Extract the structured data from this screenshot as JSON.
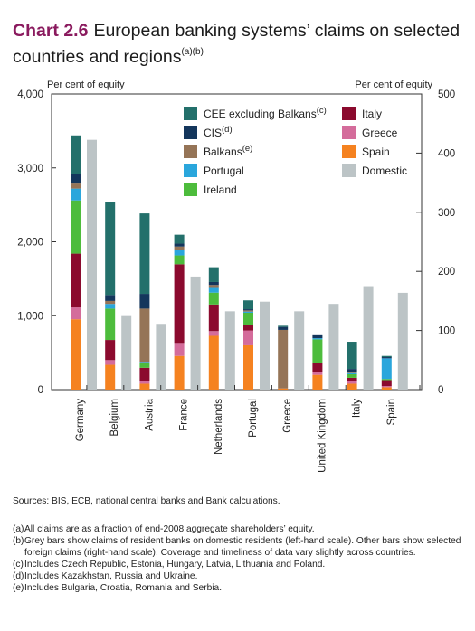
{
  "title": {
    "number": "Chart 2.6",
    "text_line1": "European banking systems’ claims on selected",
    "text_line2": "countries and regions",
    "superscript": "(a)(b)"
  },
  "colors": {
    "cee": "#23706b",
    "cis": "#14365c",
    "balkans": "#957457",
    "portugal": "#2aa6dc",
    "ireland": "#4dbc3c",
    "italy": "#8b0a2e",
    "greece": "#d46c9b",
    "spain": "#f58220",
    "domestic": "#bcc4c6",
    "axis": "#333333",
    "title_accent": "#8a1a5e"
  },
  "chart_data": {
    "type": "bar",
    "stacked": true,
    "left_axis": {
      "label": "Per cent of equity",
      "ylim": [
        0,
        4000
      ],
      "ticks": [
        "0",
        "1,000",
        "2,000",
        "3,000",
        "4,000"
      ],
      "tick_values": [
        0,
        1000,
        2000,
        3000,
        4000
      ]
    },
    "right_axis": {
      "label": "Per cent of equity",
      "ylim": [
        0,
        500
      ],
      "ticks": [
        "0",
        "100",
        "200",
        "300",
        "400",
        "500"
      ],
      "tick_values": [
        0,
        100,
        200,
        300,
        400,
        500
      ]
    },
    "categories": [
      "Germany",
      "Belgium",
      "Austria",
      "France",
      "Netherlands",
      "Portugal",
      "Greece",
      "United Kingdom",
      "Italy",
      "Spain"
    ],
    "legend": [
      {
        "key": "cee",
        "label": "CEE excluding Balkans",
        "sup": "(c)"
      },
      {
        "key": "italy",
        "label": "Italy",
        "sup": ""
      },
      {
        "key": "cis",
        "label": "CIS",
        "sup": "(d)"
      },
      {
        "key": "greece",
        "label": "Greece",
        "sup": ""
      },
      {
        "key": "balkans",
        "label": "Balkans",
        "sup": "(e)"
      },
      {
        "key": "spain",
        "label": "Spain",
        "sup": ""
      },
      {
        "key": "portugal",
        "label": "Portugal",
        "sup": ""
      },
      {
        "key": "domestic",
        "label": "Domestic",
        "sup": ""
      },
      {
        "key": "ireland",
        "label": "Ireland",
        "sup": ""
      }
    ],
    "stack_order": [
      "spain",
      "greece",
      "italy",
      "ireland",
      "portugal",
      "balkans",
      "cis",
      "cee"
    ],
    "foreign_series_right_axis": {
      "spain": [
        119,
        42,
        10,
        57,
        91,
        75,
        2,
        25,
        10,
        4
      ],
      "greece": [
        20,
        8,
        5,
        22,
        8,
        25,
        0,
        5,
        4,
        2
      ],
      "italy": [
        91,
        34,
        22,
        133,
        45,
        10,
        0,
        15,
        6,
        10
      ],
      "ireland": [
        90,
        53,
        8,
        15,
        20,
        20,
        0,
        40,
        6,
        2
      ],
      "portugal": [
        20,
        8,
        2,
        10,
        8,
        2,
        0,
        2,
        2,
        35
      ],
      "balkans": [
        10,
        5,
        90,
        5,
        5,
        2,
        99,
        0,
        2,
        0
      ],
      "cis": [
        15,
        10,
        25,
        5,
        5,
        2,
        5,
        5,
        5,
        2
      ],
      "cee": [
        65,
        157,
        136,
        15,
        25,
        15,
        2,
        0,
        46,
        2
      ]
    },
    "domestic_left_axis": [
      3380,
      995,
      890,
      1530,
      1060,
      1190,
      1060,
      1160,
      1400,
      1310
    ]
  },
  "footer": {
    "sources": "Sources:  BIS, ECB, national central banks and Bank calculations.",
    "notes": [
      {
        "tag": "(a)",
        "text": "All claims are as a fraction of end-2008 aggregate shareholders’ equity."
      },
      {
        "tag": "(b)",
        "text": "Grey bars show claims of resident banks on domestic residents (left-hand scale).  Other bars show selected foreign claims (right-hand scale).  Coverage and timeliness of data vary slightly across countries."
      },
      {
        "tag": "(c)",
        "text": "Includes Czech Republic, Estonia, Hungary, Latvia, Lithuania and Poland."
      },
      {
        "tag": "(d)",
        "text": "Includes Kazakhstan, Russia and Ukraine."
      },
      {
        "tag": "(e)",
        "text": "Includes Bulgaria, Croatia, Romania and Serbia."
      }
    ]
  }
}
